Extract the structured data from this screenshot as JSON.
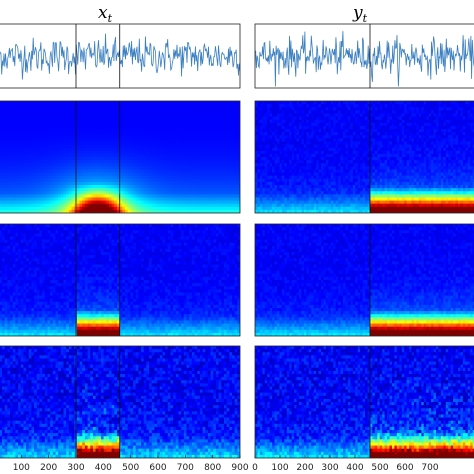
{
  "chart_data": [
    {
      "type": "line",
      "title": "x",
      "title_subscript": "t",
      "column": "left",
      "x_range": [
        0,
        900
      ],
      "markers": [
        300,
        460
      ],
      "series_color": "#3a7fc1"
    },
    {
      "type": "line",
      "title": "y",
      "title_subscript": "t",
      "column": "right",
      "x_range": [
        0,
        900
      ],
      "markers": [
        460
      ],
      "series_color": "#3a7fc1"
    },
    {
      "type": "heatmap",
      "column": "left",
      "row": 1,
      "x_range": [
        0,
        900
      ],
      "markers": [
        300,
        460
      ],
      "hot_region": {
        "x": [
          300,
          460
        ],
        "shape": "dome"
      },
      "colormap": "jet"
    },
    {
      "type": "heatmap",
      "column": "right",
      "row": 1,
      "x_range": [
        0,
        900
      ],
      "markers": [
        460
      ],
      "hot_region": {
        "x": [
          460,
          900
        ],
        "shape": "band"
      },
      "colormap": "jet"
    },
    {
      "type": "heatmap",
      "column": "left",
      "row": 2,
      "x_range": [
        0,
        900
      ],
      "markers": [
        300,
        460
      ],
      "hot_region": {
        "x": [
          300,
          460
        ],
        "shape": "band"
      },
      "colormap": "jet"
    },
    {
      "type": "heatmap",
      "column": "right",
      "row": 2,
      "x_range": [
        0,
        900
      ],
      "markers": [
        460
      ],
      "hot_region": {
        "x": [
          460,
          900
        ],
        "shape": "band"
      },
      "colormap": "jet"
    },
    {
      "type": "heatmap",
      "column": "left",
      "row": 3,
      "x_range": [
        0,
        900
      ],
      "markers": [
        300,
        460
      ],
      "hot_region": {
        "x": [
          300,
          460
        ],
        "shape": "noisy-band"
      },
      "colormap": "jet",
      "x_ticks": [
        "100",
        "200",
        "300",
        "400",
        "500",
        "600",
        "700",
        "800",
        "900"
      ]
    },
    {
      "type": "heatmap",
      "column": "right",
      "row": 3,
      "x_range": [
        0,
        900
      ],
      "markers": [
        460
      ],
      "hot_region": {
        "x": [
          460,
          900
        ],
        "shape": "noisy-band"
      },
      "colormap": "jet",
      "x_ticks": [
        "0",
        "100",
        "200",
        "300",
        "400",
        "500",
        "600",
        "700"
      ]
    }
  ]
}
